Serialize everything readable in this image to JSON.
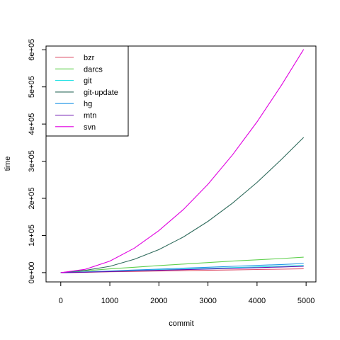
{
  "chart_data": {
    "type": "line",
    "title": "",
    "xlabel": "commit",
    "ylabel": "time",
    "xlim": [
      -300,
      5200
    ],
    "ylim": [
      -25000,
      610000
    ],
    "x_ticks": [
      0,
      1000,
      2000,
      3000,
      4000,
      5000
    ],
    "x_tick_labels": [
      "0",
      "1000",
      "2000",
      "3000",
      "4000",
      "5000"
    ],
    "y_ticks": [
      0,
      100000,
      200000,
      300000,
      400000,
      500000,
      600000
    ],
    "y_tick_labels": [
      "0e+00",
      "1e+05",
      "2e+05",
      "3e+05",
      "4e+05",
      "5e+05",
      "6e+05"
    ],
    "legend_position": "top-left",
    "grid": false,
    "x": [
      0,
      500,
      1000,
      1500,
      2000,
      2500,
      3000,
      3500,
      4000,
      4500,
      4950
    ],
    "series": [
      {
        "name": "bzr",
        "color": "#DF536B",
        "values": [
          0,
          1000,
          2200,
          3300,
          4300,
          5300,
          6300,
          7300,
          8300,
          9300,
          10500
        ]
      },
      {
        "name": "darcs",
        "color": "#61D04F",
        "values": [
          0,
          5000,
          10000,
          14500,
          19000,
          23000,
          27000,
          31000,
          34500,
          38000,
          41500
        ]
      },
      {
        "name": "git",
        "color": "#28E2E5",
        "values": [
          0,
          1500,
          3500,
          5500,
          7500,
          9500,
          11500,
          13500,
          15500,
          17500,
          19500
        ]
      },
      {
        "name": "git-update",
        "color": "#2F6B5C",
        "values": [
          0,
          6000,
          17000,
          36000,
          62000,
          96000,
          138000,
          187000,
          243000,
          305000,
          364000
        ]
      },
      {
        "name": "hg",
        "color": "#2297E6",
        "values": [
          0,
          2000,
          4500,
          7000,
          9500,
          12000,
          14500,
          17000,
          19500,
          22000,
          24500
        ]
      },
      {
        "name": "mtn",
        "color": "#6A0DAD",
        "values": [
          0,
          1200,
          2800,
          4500,
          6200,
          8000,
          9800,
          11600,
          13400,
          15200,
          17000
        ]
      },
      {
        "name": "svn",
        "color": "#E000E0",
        "values": [
          0,
          9000,
          31000,
          66000,
          113000,
          170000,
          238000,
          317000,
          406000,
          505000,
          601000
        ]
      }
    ]
  }
}
